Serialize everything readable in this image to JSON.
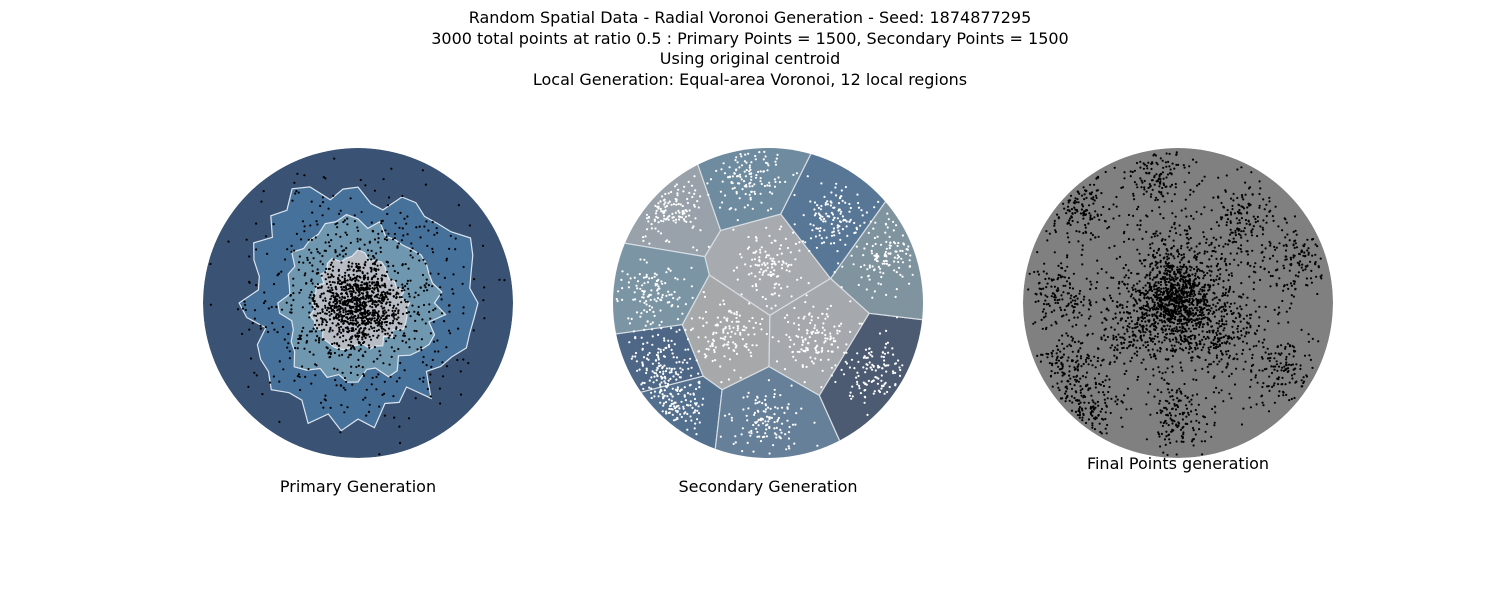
{
  "figure": {
    "title_lines": [
      "Random Spatial Data - Radial Voronoi Generation - Seed: 1874877295",
      "3000 total points at ratio 0.5 : Primary Points = 1500, Secondary Points = 1500",
      "Using original centroid",
      "Local Generation: Equal-area Voronoi, 12 local regions"
    ]
  },
  "panels": [
    {
      "title": "Primary Generation"
    },
    {
      "title": "Secondary Generation"
    },
    {
      "title": "Final Points generation"
    }
  ],
  "chart_data": [
    {
      "type": "scatter",
      "title": "Primary Generation",
      "description_source": "panel",
      "domain": {
        "shape": "circle",
        "center": [
          0,
          0
        ],
        "radius": 1
      },
      "points": 1500,
      "point_color": "#000000",
      "rings": [
        {
          "level": 1,
          "radius": 1.0,
          "color": "#3a5273"
        },
        {
          "level": 2,
          "radius": 0.74,
          "color": "#46719b"
        },
        {
          "level": 3,
          "radius": 0.5,
          "color": "#6f98b0"
        },
        {
          "level": 4,
          "radius": 0.3,
          "color": "#b8bdc5"
        }
      ],
      "boundary_color": "#dde5ee"
    },
    {
      "type": "scatter",
      "title": "Secondary Generation",
      "domain": {
        "shape": "circle",
        "center": [
          0,
          0
        ],
        "radius": 1
      },
      "points": 1500,
      "point_color": "#ffffff",
      "regions": 12,
      "region_sites": [
        [
          0.02,
          0.24
        ],
        [
          -0.28,
          -0.21
        ],
        [
          0.3,
          -0.22
        ],
        [
          0.42,
          0.55
        ],
        [
          -0.66,
          0.65
        ],
        [
          -0.76,
          0.05
        ],
        [
          -0.7,
          -0.38
        ],
        [
          -0.62,
          -0.69
        ],
        [
          -0.01,
          -0.76
        ],
        [
          0.68,
          -0.45
        ],
        [
          0.77,
          0.3
        ],
        [
          -0.14,
          0.83
        ]
      ],
      "region_colors": [
        "#a7abaf",
        "#a7a8aa",
        "#a5a8ac",
        "#587797",
        "#99a2aa",
        "#7c95a4",
        "#4e6787",
        "#54708f",
        "#668099",
        "#4c5b72",
        "#7f949f",
        "#6f8b9f"
      ],
      "boundary_color": "#d7dde3"
    },
    {
      "type": "scatter",
      "title": "Final Points generation",
      "domain": {
        "shape": "circle",
        "center": [
          0,
          0
        ],
        "radius": 1
      },
      "points": 3000,
      "background_color": "#808080",
      "point_color": "#000000"
    }
  ]
}
